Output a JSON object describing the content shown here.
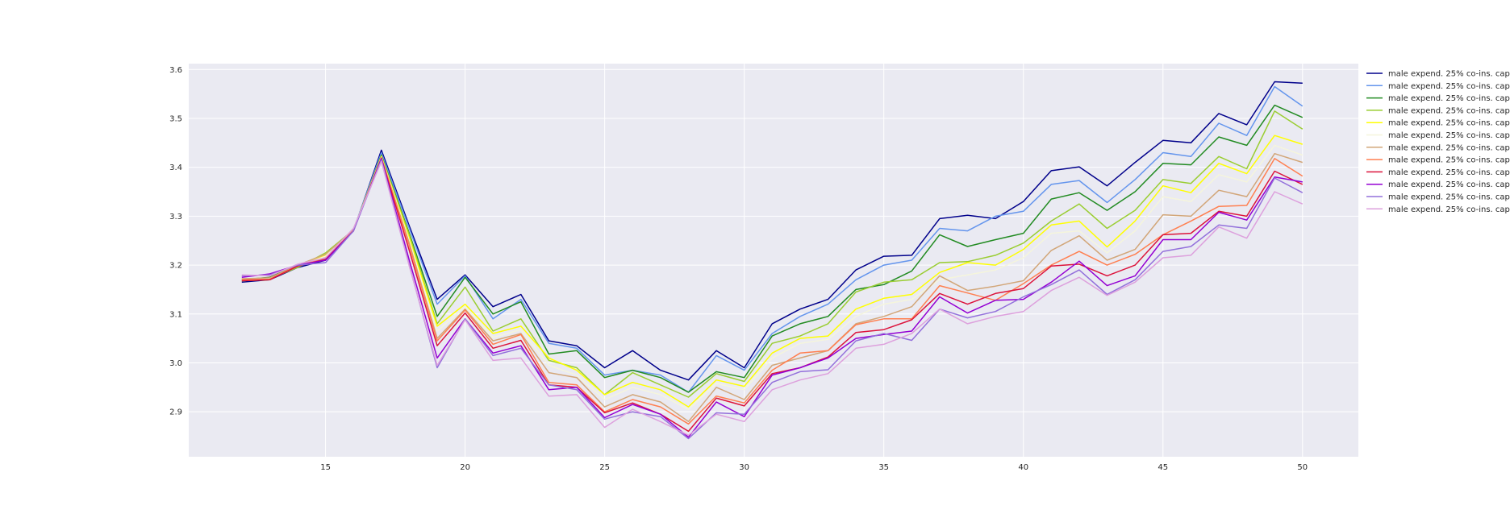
{
  "chart_data": {
    "type": "line",
    "title": "",
    "xlabel": "",
    "ylabel": "",
    "xlim": [
      10.1,
      52.0
    ],
    "ylim": [
      2.808,
      3.612
    ],
    "x_ticks": [
      15,
      20,
      25,
      30,
      35,
      40,
      45,
      50
    ],
    "y_ticks": [
      2.9,
      3.0,
      3.1,
      3.2,
      3.3,
      3.4,
      3.5,
      3.6
    ],
    "x_tick_labels": [
      "15",
      "20",
      "25",
      "30",
      "35",
      "40",
      "45",
      "50"
    ],
    "y_tick_labels": [
      "2.9",
      "3.0",
      "3.1",
      "3.2",
      "3.3",
      "3.4",
      "3.5",
      "3.6"
    ],
    "grid": true,
    "legend_position": "right",
    "background": "#eaeaf2",
    "x": [
      12,
      13,
      14,
      15,
      16,
      17,
      18,
      19,
      20,
      21,
      22,
      23,
      24,
      25,
      26,
      27,
      28,
      29,
      30,
      31,
      32,
      33,
      34,
      35,
      36,
      37,
      38,
      39,
      40,
      41,
      42,
      43,
      44,
      45,
      46,
      47,
      48,
      49,
      50
    ],
    "series": [
      {
        "name": "male expend. 25% co-ins. cap",
        "color": "#00008b",
        "values": [
          3.165,
          3.17,
          3.195,
          3.21,
          3.27,
          3.435,
          3.28,
          3.13,
          3.18,
          3.115,
          3.14,
          3.045,
          3.035,
          2.99,
          3.025,
          2.985,
          2.965,
          3.025,
          2.99,
          3.08,
          3.11,
          3.13,
          3.19,
          3.218,
          3.22,
          3.295,
          3.302,
          3.295,
          3.33,
          3.393,
          3.401,
          3.362,
          3.41,
          3.455,
          3.45,
          3.51,
          3.487,
          3.575,
          3.572
        ]
      },
      {
        "name": "male expend. 25% co-ins. cap",
        "color": "#6495ed",
        "values": [
          3.168,
          3.172,
          3.198,
          3.212,
          3.272,
          3.43,
          3.275,
          3.12,
          3.178,
          3.09,
          3.13,
          3.04,
          3.03,
          2.975,
          2.985,
          2.975,
          2.94,
          3.015,
          2.985,
          3.06,
          3.095,
          3.12,
          3.17,
          3.2,
          3.21,
          3.275,
          3.27,
          3.3,
          3.31,
          3.365,
          3.373,
          3.328,
          3.375,
          3.43,
          3.422,
          3.49,
          3.465,
          3.565,
          3.525
        ]
      },
      {
        "name": "male expend. 25% co-ins. cap",
        "color": "#228b22",
        "values": [
          3.17,
          3.175,
          3.2,
          3.215,
          3.271,
          3.425,
          3.265,
          3.095,
          3.175,
          3.1,
          3.125,
          3.018,
          3.025,
          2.97,
          2.985,
          2.97,
          2.94,
          2.982,
          2.97,
          3.055,
          3.08,
          3.095,
          3.15,
          3.16,
          3.188,
          3.262,
          3.238,
          3.252,
          3.265,
          3.335,
          3.348,
          3.312,
          3.35,
          3.408,
          3.405,
          3.462,
          3.445,
          3.527,
          3.502
        ]
      },
      {
        "name": "male expend. 25% co-ins. cap",
        "color": "#9acd32",
        "values": [
          3.172,
          3.172,
          3.195,
          3.225,
          3.272,
          3.423,
          3.262,
          3.08,
          3.155,
          3.065,
          3.09,
          3.005,
          2.99,
          2.935,
          2.98,
          2.955,
          2.93,
          2.978,
          2.962,
          3.04,
          3.055,
          3.08,
          3.145,
          3.165,
          3.17,
          3.205,
          3.207,
          3.22,
          3.245,
          3.29,
          3.325,
          3.275,
          3.312,
          3.375,
          3.367,
          3.422,
          3.397,
          3.515,
          3.478
        ]
      },
      {
        "name": "male expend. 25% co-ins. cap",
        "color": "#ffff00",
        "values": [
          3.168,
          3.17,
          3.2,
          3.22,
          3.272,
          3.422,
          3.255,
          3.075,
          3.12,
          3.06,
          3.075,
          3.01,
          2.985,
          2.935,
          2.96,
          2.945,
          2.91,
          2.965,
          2.952,
          3.02,
          3.05,
          3.055,
          3.11,
          3.132,
          3.14,
          3.185,
          3.205,
          3.2,
          3.232,
          3.282,
          3.29,
          3.237,
          3.29,
          3.362,
          3.348,
          3.408,
          3.387,
          3.465,
          3.447
        ]
      },
      {
        "name": "male expend. 25% co-ins. cap",
        "color": "#f5f5dc",
        "values": [
          3.17,
          3.173,
          3.198,
          3.218,
          3.272,
          3.421,
          3.25,
          3.065,
          3.115,
          3.052,
          3.068,
          2.995,
          2.975,
          2.925,
          2.95,
          2.935,
          2.905,
          2.958,
          2.945,
          3.01,
          3.04,
          3.048,
          3.095,
          3.12,
          3.13,
          3.17,
          3.18,
          3.19,
          3.215,
          3.265,
          3.27,
          3.225,
          3.27,
          3.34,
          3.33,
          3.385,
          3.37,
          3.445,
          3.425
        ]
      },
      {
        "name": "male expend. 25% co-ins. cap",
        "color": "#d2a679",
        "values": [
          3.172,
          3.174,
          3.2,
          3.222,
          3.272,
          3.42,
          3.245,
          3.05,
          3.11,
          3.045,
          3.06,
          2.98,
          2.97,
          2.91,
          2.935,
          2.92,
          2.88,
          2.95,
          2.925,
          2.995,
          3.01,
          3.025,
          3.08,
          3.095,
          3.115,
          3.178,
          3.148,
          3.157,
          3.168,
          3.23,
          3.26,
          3.21,
          3.232,
          3.303,
          3.3,
          3.353,
          3.34,
          3.428,
          3.41
        ]
      },
      {
        "name": "male expend. 25% co-ins. cap",
        "color": "#ff7f50",
        "values": [
          3.17,
          3.171,
          3.199,
          3.215,
          3.271,
          3.42,
          3.24,
          3.045,
          3.108,
          3.038,
          3.058,
          2.96,
          2.955,
          2.9,
          2.925,
          2.91,
          2.875,
          2.932,
          2.918,
          2.985,
          3.02,
          3.025,
          3.078,
          3.09,
          3.09,
          3.158,
          3.143,
          3.128,
          3.162,
          3.2,
          3.228,
          3.2,
          3.222,
          3.262,
          3.29,
          3.32,
          3.322,
          3.418,
          3.382
        ]
      },
      {
        "name": "male expend. 25% co-ins. cap",
        "color": "#dc143c",
        "values": [
          3.168,
          3.17,
          3.198,
          3.212,
          3.27,
          3.418,
          3.23,
          3.035,
          3.102,
          3.03,
          3.046,
          2.955,
          2.95,
          2.898,
          2.918,
          2.895,
          2.86,
          2.928,
          2.912,
          2.978,
          2.99,
          3.012,
          3.062,
          3.068,
          3.088,
          3.142,
          3.12,
          3.142,
          3.152,
          3.198,
          3.202,
          3.178,
          3.2,
          3.262,
          3.265,
          3.31,
          3.3,
          3.392,
          3.365
        ]
      },
      {
        "name": "male expend. 25% co-ins. cap",
        "color": "#9400d3",
        "values": [
          3.175,
          3.182,
          3.2,
          3.21,
          3.27,
          3.418,
          3.21,
          3.01,
          3.09,
          3.02,
          3.035,
          2.945,
          2.95,
          2.888,
          2.915,
          2.895,
          2.848,
          2.92,
          2.89,
          2.975,
          2.99,
          3.01,
          3.05,
          3.058,
          3.065,
          3.135,
          3.102,
          3.128,
          3.13,
          3.165,
          3.208,
          3.158,
          3.178,
          3.252,
          3.252,
          3.308,
          3.292,
          3.38,
          3.37
        ]
      },
      {
        "name": "male expend. 25% co-ins. cap",
        "color": "#9370db",
        "values": [
          3.178,
          3.18,
          3.2,
          3.205,
          3.27,
          3.415,
          3.2,
          2.99,
          3.09,
          3.015,
          3.03,
          2.955,
          2.945,
          2.885,
          2.9,
          2.89,
          2.845,
          2.898,
          2.895,
          2.96,
          2.982,
          2.986,
          3.045,
          3.06,
          3.046,
          3.11,
          3.092,
          3.105,
          3.135,
          3.16,
          3.19,
          3.14,
          3.17,
          3.228,
          3.238,
          3.282,
          3.275,
          3.378,
          3.348
        ]
      },
      {
        "name": "male expend. 25% co-ins. cap",
        "color": "#dda0dd",
        "values": [
          3.18,
          3.178,
          3.202,
          3.215,
          3.275,
          3.412,
          3.198,
          2.995,
          3.088,
          3.005,
          3.01,
          2.932,
          2.935,
          2.868,
          2.905,
          2.88,
          2.852,
          2.895,
          2.88,
          2.945,
          2.965,
          2.978,
          3.03,
          3.038,
          3.06,
          3.11,
          3.08,
          3.095,
          3.105,
          3.148,
          3.175,
          3.138,
          3.165,
          3.215,
          3.22,
          3.278,
          3.255,
          3.35,
          3.325
        ]
      }
    ]
  }
}
